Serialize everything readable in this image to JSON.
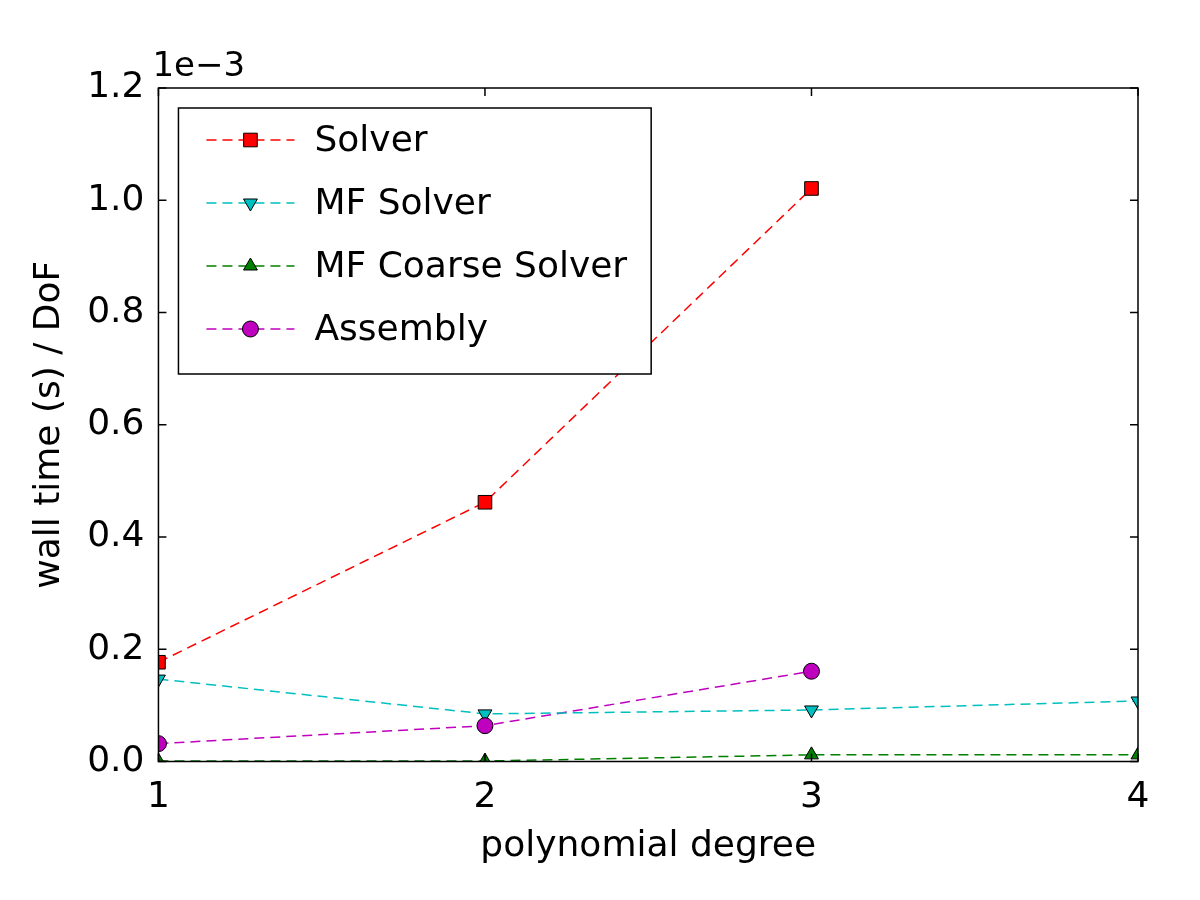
{
  "chart_data": {
    "type": "line",
    "xlabel": "polynomial degree",
    "ylabel": "wall time (s) / DoF",
    "annotations": [
      "1e−3"
    ],
    "x": [
      1,
      2,
      3,
      4
    ],
    "xlim": [
      1,
      4
    ],
    "xticks": [
      1,
      2,
      3,
      4
    ],
    "ylim": [
      0,
      1.2
    ],
    "yticks": [
      {
        "value": 0,
        "label": "0.0"
      },
      {
        "value": 0.2,
        "label": "0.2"
      },
      {
        "value": 0.4,
        "label": "0.4"
      },
      {
        "value": 0.6,
        "label": "0.6"
      },
      {
        "value": 0.8,
        "label": "0.8"
      },
      {
        "value": 1,
        "label": "1.0"
      },
      {
        "value": 1.2,
        "label": "1.2"
      }
    ],
    "grid": false,
    "legend": "top left",
    "line_style": "dashed",
    "series": [
      {
        "name": "Solver",
        "color": "#ff0000",
        "marker": "square",
        "values": [
          0.177,
          0.462,
          1.021,
          null
        ]
      },
      {
        "name": "MF Solver",
        "color": "#00bfbf",
        "marker": "triangle_down",
        "values": [
          0.147,
          0.085,
          0.092,
          0.108
        ]
      },
      {
        "name": "MF Coarse Solver",
        "color": "#008000",
        "marker": "triangle",
        "values": [
          0.001,
          0.001,
          0.012,
          0.012
        ]
      },
      {
        "name": "Assembly",
        "color": "#bf00bf",
        "marker": "circle",
        "values": [
          0.032,
          0.064,
          0.161,
          null
        ]
      }
    ]
  }
}
